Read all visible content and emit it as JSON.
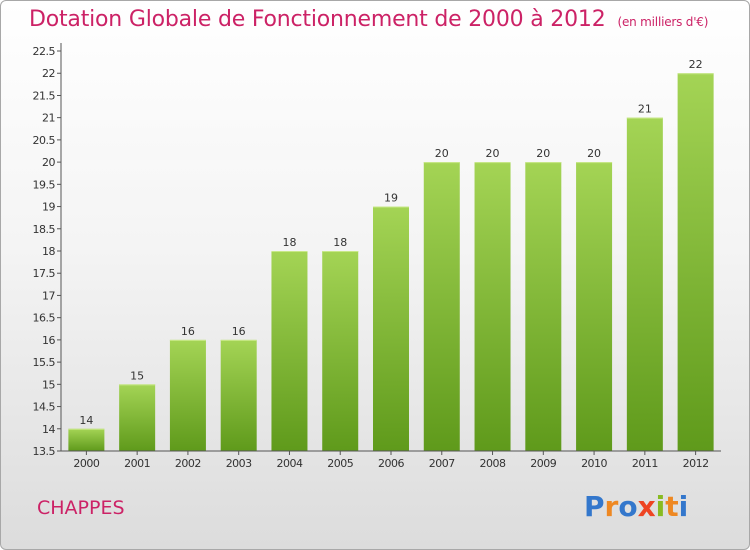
{
  "title": "Dotation Globale de Fonctionnement de 2000 à 2012",
  "subtitle": "(en milliers d'€)",
  "commune": "CHAPPES",
  "logo": {
    "text": "Proxiti",
    "letters": [
      {
        "char": "P",
        "color": "#3377cc"
      },
      {
        "char": "r",
        "color": "#ee8822"
      },
      {
        "char": "o",
        "color": "#3377cc"
      },
      {
        "char": "x",
        "color": "#ee4422"
      },
      {
        "char": "i",
        "color": "#88bb22"
      },
      {
        "char": "t",
        "color": "#ee8822"
      },
      {
        "char": "i",
        "color": "#3377cc"
      }
    ]
  },
  "colors": {
    "title": "#cc2266",
    "bar_top": "#a4d455",
    "bar_bottom": "#5f9a1b",
    "axis": "#555555",
    "tick_text": "#333333"
  },
  "chart_data": {
    "type": "bar",
    "title": "Dotation Globale de Fonctionnement de 2000 à 2012",
    "xlabel": "",
    "ylabel": "",
    "categories": [
      "2000",
      "2001",
      "2002",
      "2003",
      "2004",
      "2005",
      "2006",
      "2007",
      "2008",
      "2009",
      "2010",
      "2011",
      "2012"
    ],
    "values": [
      14,
      15,
      16,
      16,
      18,
      18,
      19,
      20,
      20,
      20,
      20,
      21,
      22
    ],
    "data_labels": [
      "14",
      "15",
      "16",
      "16",
      "18",
      "18",
      "19",
      "20",
      "20",
      "20",
      "20",
      "21",
      "22"
    ],
    "ylim": [
      13.5,
      22.5
    ],
    "yticks": [
      13.5,
      14,
      14.5,
      15,
      15.5,
      16,
      16.5,
      17,
      17.5,
      18,
      18.5,
      19,
      19.5,
      20,
      20.5,
      21,
      21.5,
      22,
      22.5
    ],
    "ytick_labels": [
      "13.5",
      "14",
      "14.5",
      "15",
      "15.5",
      "16",
      "16.5",
      "17",
      "17.5",
      "18",
      "18.5",
      "19",
      "19.5",
      "20",
      "20.5",
      "21",
      "21.5",
      "22",
      "22.5"
    ],
    "grid": false,
    "legend": "none"
  }
}
